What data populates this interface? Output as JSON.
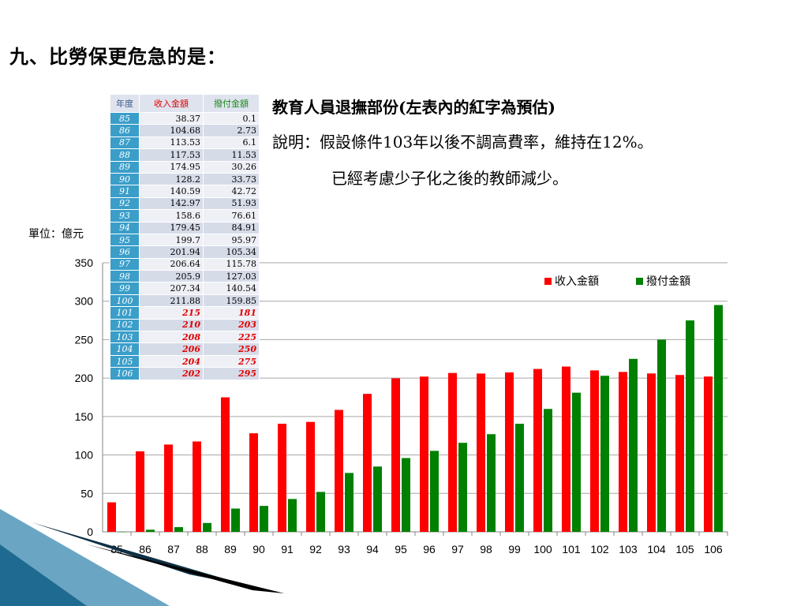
{
  "title": "九、比勞保更危急的是：",
  "heading": "教育人員退撫部份(左表內的紅字為預估)",
  "description_line1": "說明：假設條件103年以後不調高費率，維持在12%。",
  "description_line2": "已經考慮少子化之後的教師減少。",
  "unit_label": "單位：億元",
  "colors": {
    "income": "#ff0000",
    "payout": "#008000",
    "year_cell": "#3a9ec9",
    "estimate_text": "#e00000"
  },
  "table": {
    "headers": [
      "年度",
      "收入金額",
      "撥付金額"
    ],
    "rows": [
      {
        "year": "85",
        "income": "38.37",
        "payout": "0.1",
        "estimate": false
      },
      {
        "year": "86",
        "income": "104.68",
        "payout": "2.73",
        "estimate": false
      },
      {
        "year": "87",
        "income": "113.53",
        "payout": "6.1",
        "estimate": false
      },
      {
        "year": "88",
        "income": "117.53",
        "payout": "11.53",
        "estimate": false
      },
      {
        "year": "89",
        "income": "174.95",
        "payout": "30.26",
        "estimate": false
      },
      {
        "year": "90",
        "income": "128.2",
        "payout": "33.73",
        "estimate": false
      },
      {
        "year": "91",
        "income": "140.59",
        "payout": "42.72",
        "estimate": false
      },
      {
        "year": "92",
        "income": "142.97",
        "payout": "51.93",
        "estimate": false
      },
      {
        "year": "93",
        "income": "158.6",
        "payout": "76.61",
        "estimate": false
      },
      {
        "year": "94",
        "income": "179.45",
        "payout": "84.91",
        "estimate": false
      },
      {
        "year": "95",
        "income": "199.7",
        "payout": "95.97",
        "estimate": false
      },
      {
        "year": "96",
        "income": "201.94",
        "payout": "105.34",
        "estimate": false
      },
      {
        "year": "97",
        "income": "206.64",
        "payout": "115.78",
        "estimate": false
      },
      {
        "year": "98",
        "income": "205.9",
        "payout": "127.03",
        "estimate": false
      },
      {
        "year": "99",
        "income": "207.34",
        "payout": "140.54",
        "estimate": false
      },
      {
        "year": "100",
        "income": "211.88",
        "payout": "159.85",
        "estimate": false
      },
      {
        "year": "101",
        "income": "215",
        "payout": "181",
        "estimate": true
      },
      {
        "year": "102",
        "income": "210",
        "payout": "203",
        "estimate": true
      },
      {
        "year": "103",
        "income": "208",
        "payout": "225",
        "estimate": true
      },
      {
        "year": "104",
        "income": "206",
        "payout": "250",
        "estimate": true
      },
      {
        "year": "105",
        "income": "204",
        "payout": "275",
        "estimate": true
      },
      {
        "year": "106",
        "income": "202",
        "payout": "295",
        "estimate": true
      }
    ]
  },
  "chart_data": {
    "type": "bar",
    "categories": [
      "85",
      "86",
      "87",
      "88",
      "89",
      "90",
      "91",
      "92",
      "93",
      "94",
      "95",
      "96",
      "97",
      "98",
      "99",
      "100",
      "101",
      "102",
      "103",
      "104",
      "105",
      "106"
    ],
    "series": [
      {
        "name": "收入金額",
        "color": "#ff0000",
        "values": [
          38.37,
          104.68,
          113.53,
          117.53,
          174.95,
          128.2,
          140.59,
          142.97,
          158.6,
          179.45,
          199.7,
          201.94,
          206.64,
          205.9,
          207.34,
          211.88,
          215,
          210,
          208,
          206,
          204,
          202
        ]
      },
      {
        "name": "撥付金額",
        "color": "#008000",
        "values": [
          0.1,
          2.73,
          6.1,
          11.53,
          30.26,
          33.73,
          42.72,
          51.93,
          76.61,
          84.91,
          95.97,
          105.34,
          115.78,
          127.03,
          140.54,
          159.85,
          181,
          203,
          225,
          250,
          275,
          295
        ]
      }
    ],
    "yticks": [
      0,
      50,
      100,
      150,
      200,
      250,
      300,
      350
    ],
    "ylim": [
      0,
      350
    ],
    "grid": true,
    "legend_position": "top-right"
  }
}
